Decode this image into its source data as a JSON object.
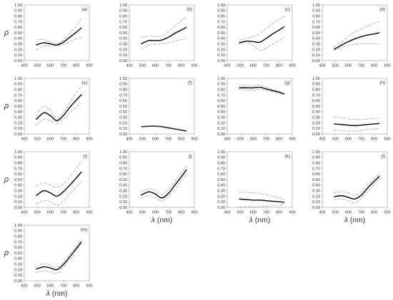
{
  "axis": {
    "y_symbol": "ρ",
    "x_title_prefix": "λ",
    "x_title_suffix": " (nm)",
    "x_ticks": [
      "400",
      "500",
      "600",
      "700",
      "800",
      "900"
    ],
    "y_ticks": [
      "0.00",
      "0.10",
      "0.20",
      "0.30",
      "0.40",
      "0.50",
      "0.60",
      "0.70",
      "0.80",
      "0.90",
      "1.00"
    ]
  },
  "colors": {
    "mean": "#000000",
    "band": "#9a9a9a",
    "frame": "#9a9a9a"
  },
  "chart_data": [
    {
      "type": "line",
      "label": "(a)",
      "xlim": [
        400,
        900
      ],
      "ylim": [
        0,
        1
      ],
      "x": [
        490,
        550,
        600,
        650,
        700,
        750,
        800,
        840
      ],
      "series": [
        {
          "role": "mean",
          "values": [
            0.28,
            0.32,
            0.3,
            0.28,
            0.33,
            0.42,
            0.51,
            0.59
          ]
        },
        {
          "role": "upper",
          "values": [
            0.37,
            0.38,
            0.34,
            0.3,
            0.37,
            0.5,
            0.63,
            0.76
          ]
        },
        {
          "role": "lower",
          "values": [
            0.19,
            0.26,
            0.26,
            0.26,
            0.29,
            0.34,
            0.39,
            0.42
          ]
        }
      ]
    },
    {
      "type": "line",
      "label": "(b)",
      "xlim": [
        400,
        900
      ],
      "ylim": [
        0,
        1
      ],
      "x": [
        490,
        550,
        600,
        650,
        700,
        750,
        800,
        840
      ],
      "series": [
        {
          "role": "mean",
          "values": [
            0.3,
            0.36,
            0.36,
            0.37,
            0.42,
            0.49,
            0.55,
            0.6
          ]
        },
        {
          "role": "upper",
          "values": [
            0.4,
            0.45,
            0.43,
            0.44,
            0.52,
            0.62,
            0.72,
            0.79
          ]
        },
        {
          "role": "lower",
          "values": [
            0.21,
            0.28,
            0.29,
            0.3,
            0.32,
            0.35,
            0.38,
            0.4
          ]
        }
      ]
    },
    {
      "type": "line",
      "label": "(c)",
      "xlim": [
        400,
        900
      ],
      "ylim": [
        0,
        1
      ],
      "x": [
        490,
        550,
        600,
        650,
        700,
        750,
        800,
        840
      ],
      "series": [
        {
          "role": "mean",
          "values": [
            0.32,
            0.35,
            0.34,
            0.33,
            0.4,
            0.48,
            0.55,
            0.61
          ]
        },
        {
          "role": "upper",
          "values": [
            0.37,
            0.4,
            0.43,
            0.49,
            0.58,
            0.67,
            0.74,
            0.8
          ]
        },
        {
          "role": "lower",
          "values": [
            0.3,
            0.32,
            0.27,
            0.19,
            0.23,
            0.3,
            0.36,
            0.42
          ]
        }
      ]
    },
    {
      "type": "line",
      "label": "(d)",
      "xlim": [
        400,
        900
      ],
      "ylim": [
        0,
        1
      ],
      "x": [
        490,
        550,
        600,
        650,
        700,
        750,
        800,
        840
      ],
      "series": [
        {
          "role": "mean",
          "values": [
            0.2,
            0.28,
            0.34,
            0.39,
            0.43,
            0.46,
            0.48,
            0.5
          ]
        },
        {
          "role": "upper",
          "values": [
            0.24,
            0.34,
            0.43,
            0.51,
            0.57,
            0.62,
            0.67,
            0.7
          ]
        },
        {
          "role": "lower",
          "values": [
            0.18,
            0.24,
            0.27,
            0.29,
            0.3,
            0.3,
            0.3,
            0.3
          ]
        }
      ]
    },
    {
      "type": "line",
      "label": "(e)",
      "xlim": [
        400,
        900
      ],
      "ylim": [
        0,
        1
      ],
      "x": [
        490,
        550,
        600,
        650,
        700,
        750,
        800,
        840
      ],
      "series": [
        {
          "role": "mean",
          "values": [
            0.26,
            0.38,
            0.33,
            0.24,
            0.33,
            0.48,
            0.61,
            0.71
          ]
        },
        {
          "role": "upper",
          "values": [
            0.33,
            0.5,
            0.43,
            0.28,
            0.39,
            0.57,
            0.74,
            0.86
          ]
        },
        {
          "role": "lower",
          "values": [
            0.16,
            0.26,
            0.24,
            0.2,
            0.26,
            0.38,
            0.48,
            0.56
          ]
        }
      ]
    },
    {
      "type": "line",
      "label": "(f)",
      "xlim": [
        400,
        900
      ],
      "ylim": [
        0,
        1
      ],
      "x": [
        490,
        550,
        600,
        650,
        700,
        750,
        800,
        840
      ],
      "series": [
        {
          "role": "mean",
          "values": [
            0.13,
            0.14,
            0.14,
            0.13,
            0.11,
            0.09,
            0.07,
            0.05
          ]
        },
        {
          "role": "upper",
          "values": [
            0.14,
            0.15,
            0.15,
            0.14,
            0.12,
            0.1,
            0.08,
            0.06
          ]
        },
        {
          "role": "lower",
          "values": [
            0.12,
            0.13,
            0.13,
            0.12,
            0.1,
            0.08,
            0.06,
            0.04
          ]
        }
      ]
    },
    {
      "type": "line",
      "label": "(g)",
      "xlim": [
        400,
        900
      ],
      "ylim": [
        0,
        1
      ],
      "x": [
        490,
        550,
        600,
        650,
        700,
        750,
        800,
        840
      ],
      "series": [
        {
          "role": "mean",
          "values": [
            0.83,
            0.83,
            0.83,
            0.84,
            0.81,
            0.78,
            0.75,
            0.72
          ]
        },
        {
          "role": "upper",
          "values": [
            0.88,
            0.87,
            0.87,
            0.88,
            0.84,
            0.8,
            0.77,
            0.73
          ]
        },
        {
          "role": "lower",
          "values": [
            0.8,
            0.79,
            0.79,
            0.8,
            0.78,
            0.76,
            0.73,
            0.71
          ]
        }
      ]
    },
    {
      "type": "line",
      "label": "(h)",
      "xlim": [
        400,
        900
      ],
      "ylim": [
        0,
        1
      ],
      "x": [
        490,
        550,
        600,
        650,
        700,
        750,
        800,
        840
      ],
      "series": [
        {
          "role": "mean",
          "values": [
            0.18,
            0.17,
            0.16,
            0.15,
            0.16,
            0.17,
            0.18,
            0.19
          ]
        },
        {
          "role": "upper",
          "values": [
            0.31,
            0.29,
            0.27,
            0.26,
            0.26,
            0.27,
            0.28,
            0.29
          ]
        },
        {
          "role": "lower",
          "values": [
            0.07,
            0.06,
            0.05,
            0.05,
            0.06,
            0.08,
            0.09,
            0.1
          ]
        }
      ]
    },
    {
      "type": "line",
      "label": "(i)",
      "xlim": [
        400,
        900
      ],
      "ylim": [
        0,
        1
      ],
      "x": [
        490,
        550,
        600,
        650,
        700,
        750,
        800,
        840
      ],
      "series": [
        {
          "role": "mean",
          "values": [
            0.21,
            0.3,
            0.26,
            0.2,
            0.28,
            0.4,
            0.53,
            0.64
          ]
        },
        {
          "role": "upper",
          "values": [
            0.38,
            0.44,
            0.4,
            0.36,
            0.42,
            0.55,
            0.7,
            0.82
          ]
        },
        {
          "role": "lower",
          "values": [
            0.06,
            0.12,
            0.1,
            0.04,
            0.11,
            0.24,
            0.37,
            0.47
          ]
        }
      ]
    },
    {
      "type": "line",
      "label": "(j)",
      "xlim": [
        400,
        900
      ],
      "ylim": [
        0,
        1
      ],
      "x": [
        490,
        550,
        600,
        650,
        700,
        750,
        800,
        840
      ],
      "series": [
        {
          "role": "mean",
          "values": [
            0.22,
            0.28,
            0.24,
            0.17,
            0.25,
            0.4,
            0.55,
            0.68
          ]
        },
        {
          "role": "upper",
          "values": [
            0.27,
            0.34,
            0.31,
            0.24,
            0.32,
            0.47,
            0.62,
            0.74
          ]
        },
        {
          "role": "lower",
          "values": [
            0.17,
            0.21,
            0.18,
            0.12,
            0.19,
            0.32,
            0.48,
            0.61
          ]
        }
      ]
    },
    {
      "type": "line",
      "label": "(k)",
      "xlim": [
        400,
        900
      ],
      "ylim": [
        0,
        1
      ],
      "x": [
        490,
        550,
        600,
        650,
        700,
        750,
        800,
        840
      ],
      "series": [
        {
          "role": "mean",
          "values": [
            0.15,
            0.14,
            0.13,
            0.13,
            0.12,
            0.11,
            0.1,
            0.09
          ]
        },
        {
          "role": "upper",
          "values": [
            0.28,
            0.27,
            0.26,
            0.25,
            0.23,
            0.2,
            0.17,
            0.14
          ]
        },
        {
          "role": "lower",
          "values": [
            0.01,
            0.01,
            0.01,
            0.01,
            0.02,
            0.03,
            0.04,
            0.05
          ]
        }
      ]
    },
    {
      "type": "line",
      "label": "(l)",
      "xlim": [
        400,
        900
      ],
      "ylim": [
        0,
        1
      ],
      "x": [
        490,
        550,
        600,
        650,
        700,
        750,
        800,
        840
      ],
      "series": [
        {
          "role": "mean",
          "values": [
            0.19,
            0.21,
            0.18,
            0.15,
            0.22,
            0.35,
            0.47,
            0.56
          ]
        },
        {
          "role": "upper",
          "values": [
            0.26,
            0.28,
            0.26,
            0.22,
            0.28,
            0.4,
            0.52,
            0.6
          ]
        },
        {
          "role": "lower",
          "values": [
            0.14,
            0.15,
            0.12,
            0.08,
            0.16,
            0.29,
            0.42,
            0.52
          ]
        }
      ]
    },
    {
      "type": "line",
      "label": "(m)",
      "xlim": [
        400,
        900
      ],
      "ylim": [
        0,
        1
      ],
      "x": [
        490,
        550,
        600,
        650,
        700,
        750,
        800,
        840
      ],
      "series": [
        {
          "role": "mean",
          "values": [
            0.21,
            0.25,
            0.23,
            0.2,
            0.29,
            0.43,
            0.58,
            0.7
          ]
        },
        {
          "role": "upper",
          "values": [
            0.25,
            0.31,
            0.28,
            0.24,
            0.33,
            0.47,
            0.62,
            0.74
          ]
        },
        {
          "role": "lower",
          "values": [
            0.15,
            0.18,
            0.16,
            0.13,
            0.24,
            0.38,
            0.54,
            0.67
          ]
        }
      ]
    }
  ]
}
